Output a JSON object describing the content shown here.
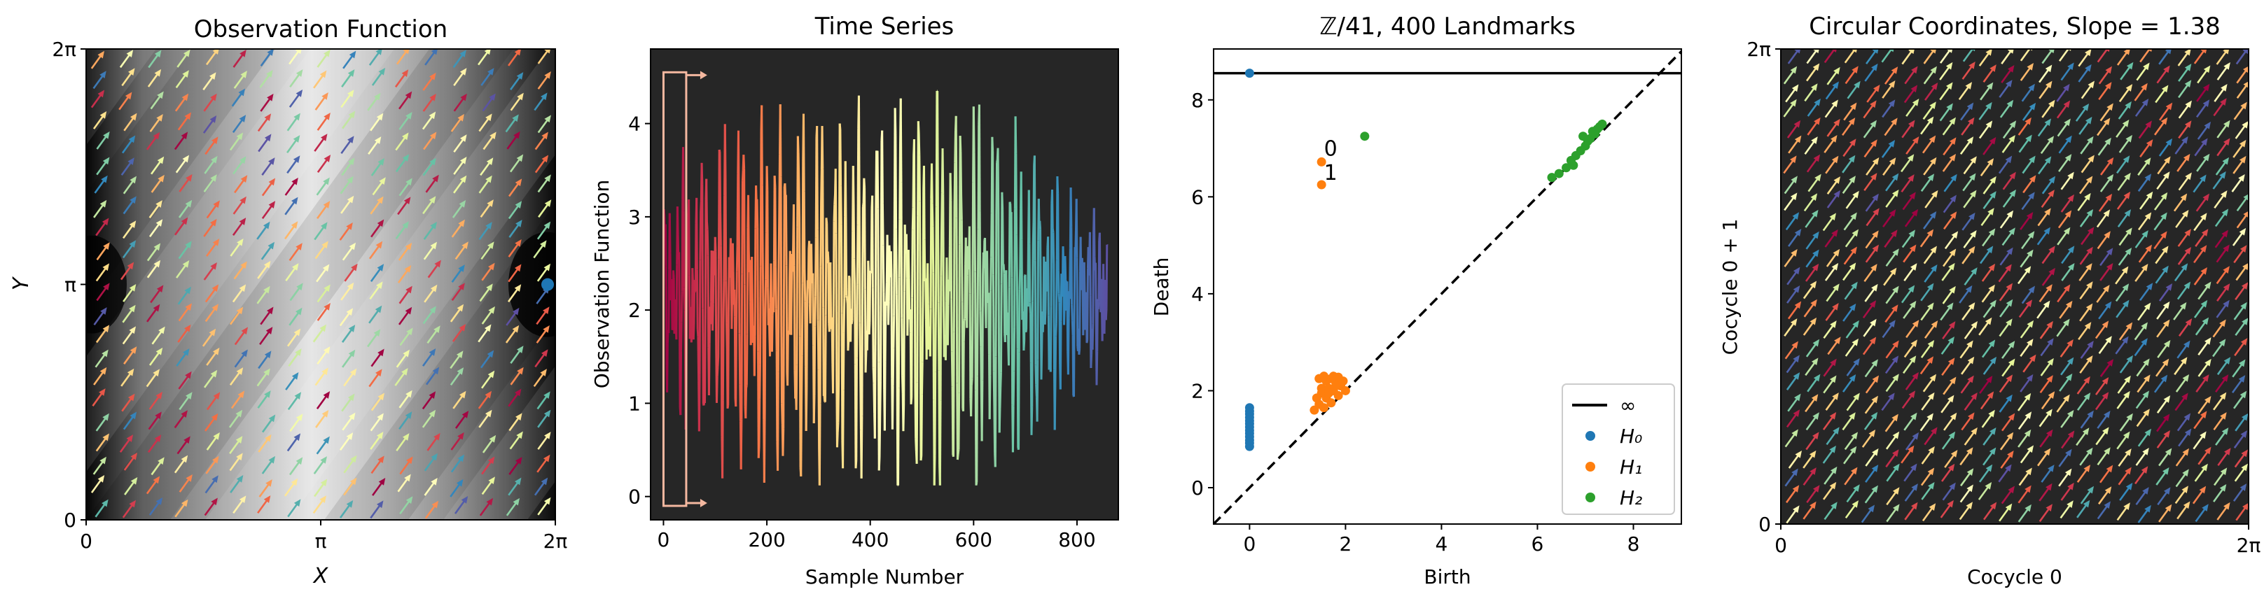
{
  "chart_data": [
    {
      "type": "heatmap",
      "title": "Observation Function",
      "xlabel": "X",
      "ylabel": "Y",
      "xlim": [
        0,
        6.283
      ],
      "ylim": [
        0,
        6.283
      ],
      "x_ticks": [
        "0",
        "π",
        "2π"
      ],
      "y_ticks": [
        "0",
        "π",
        "2π"
      ],
      "colormap": "grayscale (dark low, light high)",
      "overlay": "trajectory arrows colored by time (Spectral colormap), slope ≈ 1.38",
      "marker": {
        "x": 6.18,
        "y": 3.14,
        "color": "#1f77b4"
      }
    },
    {
      "type": "line",
      "title": "Time Series",
      "xlabel": "Sample Number",
      "ylabel": "Observation Function",
      "xlim": [
        -25,
        880
      ],
      "ylim": [
        -0.25,
        4.8
      ],
      "x_ticks": [
        0,
        200,
        400,
        600,
        800
      ],
      "y_ticks": [
        0,
        1,
        2,
        3,
        4
      ],
      "background": "#262626",
      "colormap": "Spectral (red → yellow → green → blue → purple)",
      "window_box": {
        "x": [
          0,
          44
        ],
        "y": [
          -0.1,
          4.55
        ]
      },
      "n_samples": 860
    },
    {
      "type": "scatter",
      "title": "ℤ/41, 400 Landmarks",
      "xlabel": "Birth",
      "ylabel": "Death",
      "xlim": [
        -0.75,
        9.0
      ],
      "ylim": [
        -0.75,
        9.05
      ],
      "x_ticks": [
        0,
        2,
        4,
        6,
        8
      ],
      "y_ticks": [
        0,
        2,
        4,
        6,
        8
      ],
      "infinity_line": 8.55,
      "legend": [
        {
          "label": "∞",
          "kind": "line",
          "color": "#000000"
        },
        {
          "label": "H₀",
          "kind": "point",
          "color": "#1f77b4"
        },
        {
          "label": "H₁",
          "kind": "point",
          "color": "#ff7f0e"
        },
        {
          "label": "H₂",
          "kind": "point",
          "color": "#2ca02c"
        }
      ],
      "legend_position": "lower-right",
      "series": [
        {
          "name": "H₀",
          "color": "#1f77b4",
          "points": [
            [
              0,
              0.85
            ],
            [
              0,
              0.92
            ],
            [
              0,
              0.98
            ],
            [
              0,
              1.05
            ],
            [
              0,
              1.12
            ],
            [
              0,
              1.18
            ],
            [
              0,
              1.25
            ],
            [
              0,
              1.32
            ],
            [
              0,
              1.38
            ],
            [
              0,
              1.45
            ],
            [
              0,
              1.52
            ],
            [
              0,
              1.58
            ],
            [
              0,
              1.65
            ],
            [
              0,
              8.55
            ]
          ]
        },
        {
          "name": "H₁",
          "color": "#ff7f0e",
          "points": [
            [
              1.5,
              6.72
            ],
            [
              1.5,
              6.25
            ],
            [
              1.35,
              1.6
            ],
            [
              1.45,
              1.72
            ],
            [
              1.55,
              1.65
            ],
            [
              1.6,
              1.85
            ],
            [
              1.7,
              1.75
            ],
            [
              1.75,
              2.0
            ],
            [
              1.85,
              1.9
            ],
            [
              1.5,
              2.05
            ],
            [
              1.6,
              2.2
            ],
            [
              1.9,
              2.1
            ],
            [
              1.45,
              2.25
            ],
            [
              1.7,
              2.25
            ],
            [
              1.95,
              2.2
            ],
            [
              1.5,
              1.95
            ],
            [
              1.65,
              2.05
            ],
            [
              1.8,
              2.15
            ],
            [
              1.4,
              1.85
            ],
            [
              1.55,
              2.3
            ],
            [
              1.85,
              2.28
            ],
            [
              2.0,
              2.0
            ],
            [
              1.65,
              1.95
            ],
            [
              1.75,
              2.3
            ]
          ]
        },
        {
          "name": "H₂",
          "color": "#2ca02c",
          "points": [
            [
              2.4,
              7.25
            ],
            [
              6.3,
              6.4
            ],
            [
              6.45,
              6.48
            ],
            [
              6.6,
              6.6
            ],
            [
              6.7,
              6.75
            ],
            [
              6.8,
              6.85
            ],
            [
              6.9,
              6.95
            ],
            [
              7.0,
              7.05
            ],
            [
              7.1,
              7.2
            ],
            [
              7.2,
              7.3
            ],
            [
              7.3,
              7.45
            ],
            [
              7.35,
              7.5
            ],
            [
              6.95,
              7.25
            ],
            [
              7.15,
              7.35
            ],
            [
              7.05,
              7.15
            ],
            [
              6.75,
              6.65
            ],
            [
              7.25,
              7.4
            ]
          ]
        }
      ],
      "annotations": [
        {
          "text": "0",
          "x": 1.55,
          "y": 6.85
        },
        {
          "text": "1",
          "x": 1.55,
          "y": 6.35
        }
      ]
    },
    {
      "type": "scatter",
      "title": "Circular Coordinates, Slope = 1.38",
      "xlabel": "Cocycle 0",
      "ylabel": "Cocycle 0 + 1",
      "xlim": [
        0,
        6.283
      ],
      "ylim": [
        0,
        6.283
      ],
      "x_ticks": [
        "0",
        "2π"
      ],
      "y_ticks": [
        "0",
        "2π"
      ],
      "background": "#262626",
      "overlay": "trajectory arrows colored by time (Spectral colormap), slope ≈ 1.38"
    }
  ]
}
